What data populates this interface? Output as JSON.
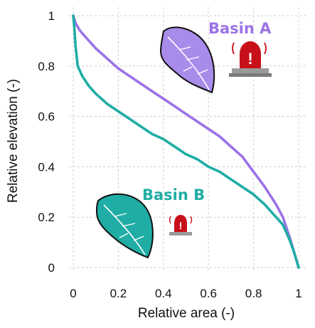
{
  "chart_data": {
    "type": "line",
    "xlabel": "Relative area (-)",
    "ylabel": "Relative elevation (-)",
    "xlim": [
      0,
      1
    ],
    "ylim": [
      0,
      1
    ],
    "x_ticks": [
      "0",
      "0.2",
      "0.4",
      "0.6",
      "0.8",
      "1"
    ],
    "y_ticks": [
      "0",
      "0.2",
      "0.4",
      "0.6",
      "0.8",
      "1"
    ],
    "grid": true,
    "legend": "none",
    "series": [
      {
        "name": "Basin A",
        "color": "#9b72e8",
        "x": [
          0,
          0.01,
          0.03,
          0.06,
          0.1,
          0.15,
          0.2,
          0.25,
          0.3,
          0.35,
          0.4,
          0.45,
          0.5,
          0.55,
          0.6,
          0.65,
          0.7,
          0.75,
          0.8,
          0.85,
          0.9,
          0.93,
          0.96,
          0.98,
          1.0
        ],
        "y": [
          1.0,
          0.97,
          0.94,
          0.91,
          0.87,
          0.83,
          0.79,
          0.76,
          0.73,
          0.7,
          0.67,
          0.64,
          0.61,
          0.58,
          0.55,
          0.52,
          0.48,
          0.44,
          0.38,
          0.32,
          0.25,
          0.2,
          0.12,
          0.06,
          0.0
        ]
      },
      {
        "name": "Basin B",
        "color": "#1fada5",
        "x": [
          0,
          0.005,
          0.01,
          0.02,
          0.04,
          0.07,
          0.1,
          0.15,
          0.2,
          0.25,
          0.3,
          0.35,
          0.4,
          0.45,
          0.5,
          0.55,
          0.6,
          0.65,
          0.7,
          0.75,
          0.8,
          0.85,
          0.9,
          0.93,
          0.96,
          0.98,
          1.0
        ],
        "y": [
          1.0,
          0.95,
          0.88,
          0.8,
          0.76,
          0.72,
          0.69,
          0.65,
          0.62,
          0.59,
          0.56,
          0.53,
          0.51,
          0.48,
          0.45,
          0.43,
          0.4,
          0.38,
          0.35,
          0.32,
          0.29,
          0.25,
          0.2,
          0.17,
          0.11,
          0.06,
          0.0
        ]
      }
    ]
  },
  "annotations": {
    "basin_a_label": "Basin A",
    "basin_b_label": "Basin B",
    "basin_a_icon": "leaf-icon",
    "basin_b_icon": "leaf-icon",
    "alarm_icon": "siren-icon",
    "alarm_color": "#c8101b"
  }
}
